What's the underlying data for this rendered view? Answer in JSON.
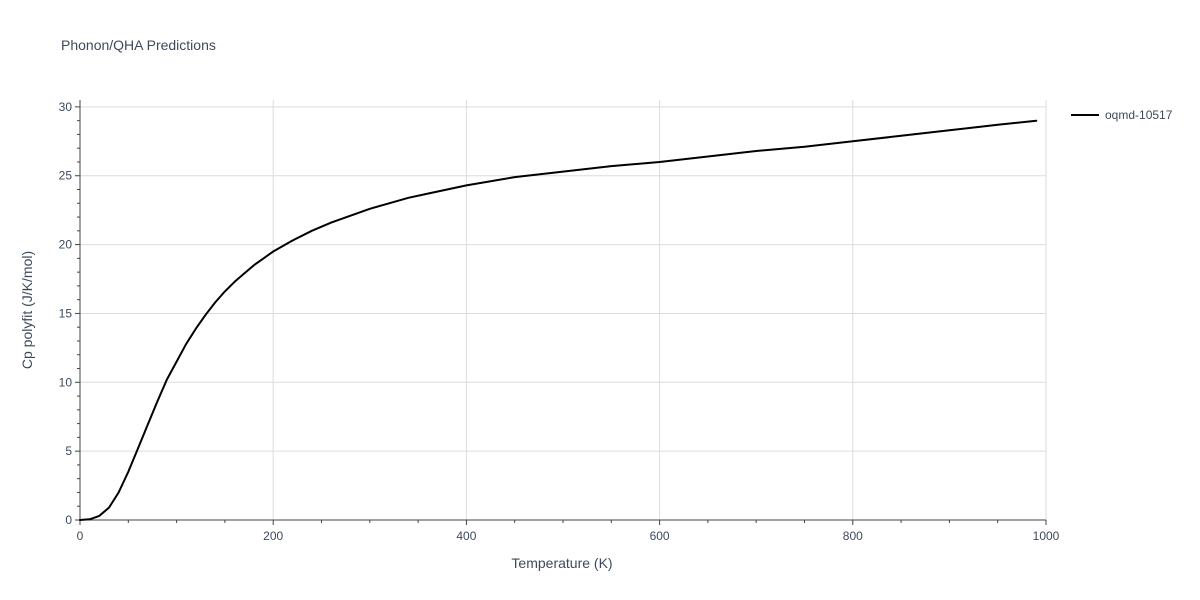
{
  "chart_data": {
    "type": "line",
    "title": "Phonon/QHA Predictions",
    "xlabel": "Temperature (K)",
    "ylabel": "Cp polyfit (J/K/mol)",
    "xlim": [
      0,
      1000
    ],
    "ylim": [
      0,
      30.5
    ],
    "x_ticks": [
      0,
      200,
      400,
      600,
      800,
      1000
    ],
    "x_tick_labels": [
      "0",
      "200",
      "400",
      "600",
      "800",
      "1000"
    ],
    "y_ticks": [
      0,
      5,
      10,
      15,
      20,
      25,
      30
    ],
    "y_tick_labels": [
      "0",
      "5",
      "10",
      "15",
      "20",
      "25",
      "30"
    ],
    "grid": true,
    "legend_position": "top-right",
    "series": [
      {
        "name": "oqmd-10517",
        "color": "#000000",
        "x": [
          0,
          10,
          20,
          30,
          40,
          50,
          60,
          70,
          80,
          90,
          100,
          110,
          120,
          130,
          140,
          150,
          160,
          170,
          180,
          190,
          200,
          220,
          240,
          260,
          280,
          300,
          320,
          340,
          360,
          380,
          400,
          450,
          500,
          550,
          600,
          650,
          700,
          750,
          800,
          850,
          900,
          950,
          990
        ],
        "y": [
          0.0,
          0.05,
          0.3,
          0.9,
          2.0,
          3.5,
          5.2,
          6.9,
          8.6,
          10.2,
          11.5,
          12.8,
          13.9,
          14.9,
          15.8,
          16.6,
          17.3,
          17.9,
          18.5,
          19.0,
          19.5,
          20.3,
          21.0,
          21.6,
          22.1,
          22.6,
          23.0,
          23.4,
          23.7,
          24.0,
          24.3,
          24.9,
          25.3,
          25.7,
          26.0,
          26.4,
          26.8,
          27.1,
          27.5,
          27.9,
          28.3,
          28.7,
          29.0
        ]
      }
    ]
  }
}
